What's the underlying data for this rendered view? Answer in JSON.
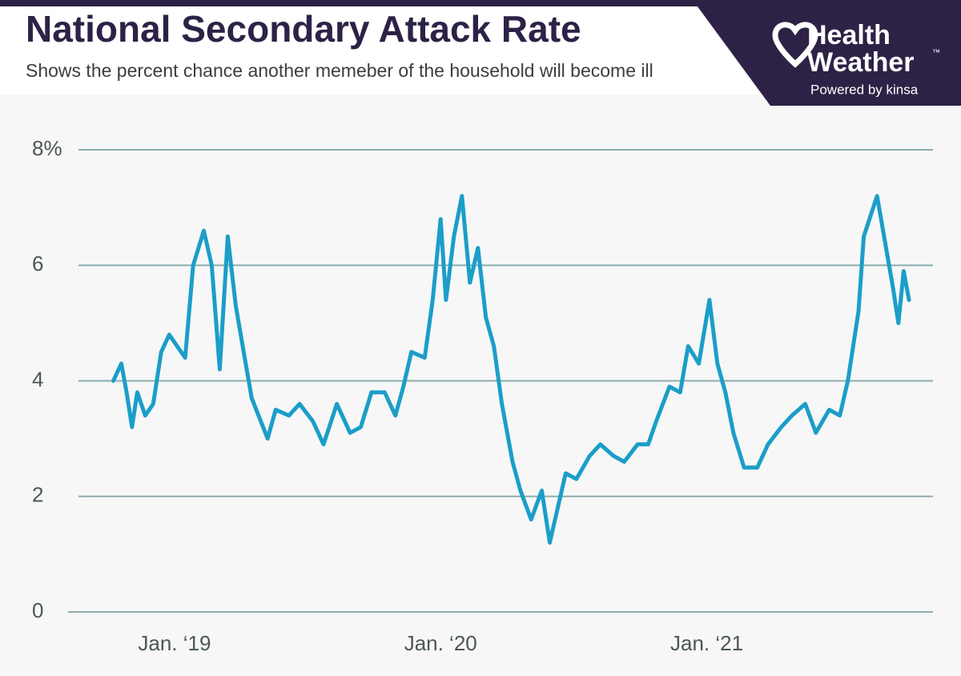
{
  "header": {
    "title": "National Secondary Attack Rate",
    "subtitle": "Shows the percent chance another memeber of the household will become ill",
    "brand_line1": "Health",
    "brand_line2": "Weather",
    "trademark": "™",
    "powered_by": "Powered by kinsa"
  },
  "chart_data": {
    "type": "line",
    "x": [
      2018.77,
      2018.8,
      2018.82,
      2018.84,
      2018.86,
      2018.89,
      2018.92,
      2018.95,
      2018.98,
      2019.01,
      2019.04,
      2019.07,
      2019.11,
      2019.14,
      2019.17,
      2019.2,
      2019.23,
      2019.26,
      2019.29,
      2019.35,
      2019.38,
      2019.43,
      2019.47,
      2019.52,
      2019.56,
      2019.61,
      2019.66,
      2019.7,
      2019.74,
      2019.79,
      2019.83,
      2019.86,
      2019.89,
      2019.94,
      2019.97,
      2020.0,
      2020.02,
      2020.05,
      2020.08,
      2020.11,
      2020.14,
      2020.17,
      2020.2,
      2020.23,
      2020.27,
      2020.3,
      2020.34,
      2020.38,
      2020.41,
      2020.44,
      2020.47,
      2020.51,
      2020.56,
      2020.6,
      2020.65,
      2020.69,
      2020.74,
      2020.78,
      2020.81,
      2020.86,
      2020.9,
      2020.93,
      2020.97,
      2021.01,
      2021.04,
      2021.07,
      2021.1,
      2021.14,
      2021.19,
      2021.23,
      2021.28,
      2021.32,
      2021.37,
      2021.41,
      2021.46,
      2021.5,
      2021.53,
      2021.57,
      2021.59,
      2021.64,
      2021.67,
      2021.7,
      2021.72,
      2021.74,
      2021.76
    ],
    "series": [
      {
        "color": "#1b9ec8",
        "values": [
          4.0,
          4.3,
          3.8,
          3.2,
          3.8,
          3.4,
          3.6,
          4.5,
          4.8,
          4.6,
          4.4,
          6.0,
          6.6,
          6.0,
          4.2,
          6.5,
          5.3,
          4.5,
          3.7,
          3.0,
          3.5,
          3.4,
          3.6,
          3.3,
          2.9,
          3.6,
          3.1,
          3.2,
          3.8,
          3.8,
          3.4,
          3.9,
          4.5,
          4.4,
          5.4,
          6.8,
          5.4,
          6.5,
          7.2,
          5.7,
          6.3,
          5.1,
          4.6,
          3.6,
          2.6,
          2.1,
          1.6,
          2.1,
          1.2,
          1.8,
          2.4,
          2.3,
          2.7,
          2.9,
          2.7,
          2.6,
          2.9,
          2.9,
          3.3,
          3.9,
          3.8,
          4.6,
          4.3,
          5.4,
          4.3,
          3.8,
          3.1,
          2.5,
          2.5,
          2.9,
          3.2,
          3.4,
          3.6,
          3.1,
          3.5,
          3.4,
          4.0,
          5.2,
          6.5,
          7.2,
          6.4,
          5.6,
          5.0,
          5.9,
          5.4
        ]
      }
    ],
    "xlim": [
      2018.6,
      2021.85
    ],
    "xticks": [
      {
        "value": 2019,
        "label": "Jan. ‘19"
      },
      {
        "value": 2020,
        "label": "Jan. ‘20"
      },
      {
        "value": 2021,
        "label": "Jan. ‘21"
      }
    ],
    "ylim": [
      0,
      8
    ],
    "yticks": [
      0,
      2,
      4,
      6,
      {
        "value": 8,
        "label": "8%"
      }
    ],
    "grid": true
  }
}
